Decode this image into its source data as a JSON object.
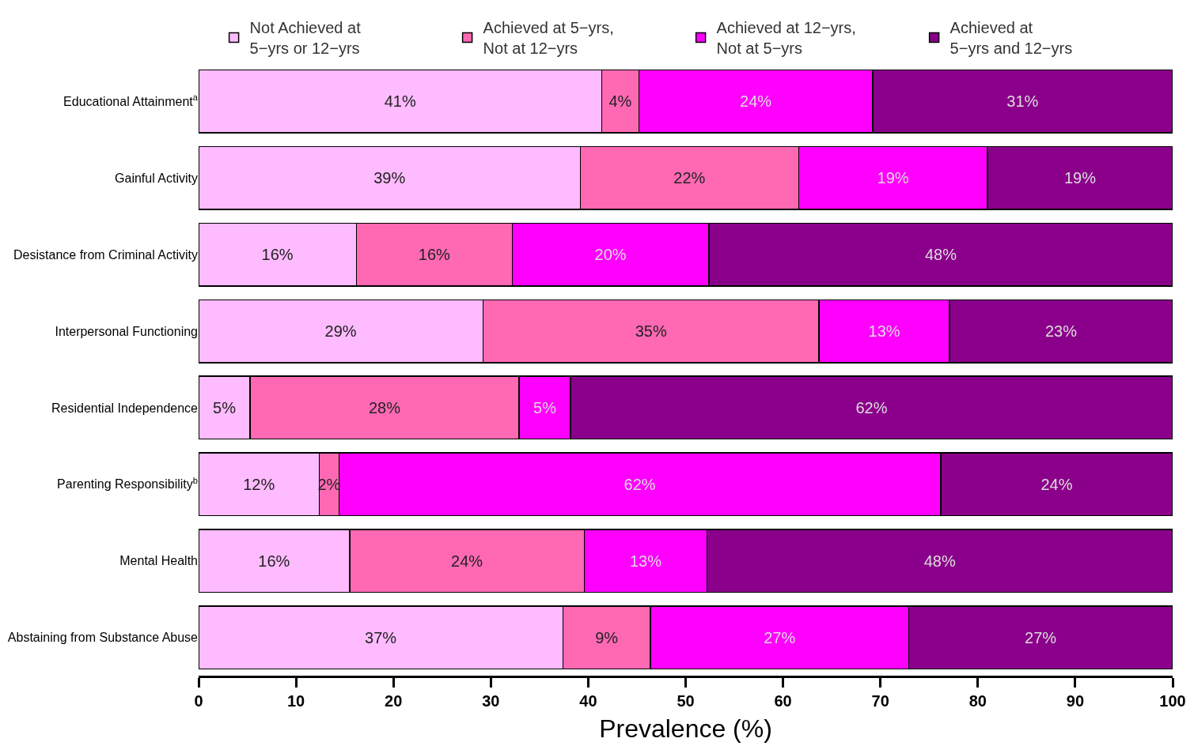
{
  "chart_data": {
    "type": "bar",
    "orientation": "horizontal",
    "stacked": true,
    "xlabel": "Prevalence (%)",
    "legend": "top",
    "categories": [
      "Educational Attainment$^{a}$",
      "Gainful Activity",
      "Desistance from Criminal Activity",
      "Interpersonal Functioning",
      "Residential Independence",
      "Parenting Responsibility$^{b}$",
      "Mental Health",
      "Abstaining from Substance Abuse"
    ],
    "series": [
      {
        "name": "Not Achieved at\n5−yrs or 12−yrs",
        "color": "#ffbbff",
        "values": [
          41.4,
          39.2,
          16.2,
          29.2,
          5.3,
          12.4,
          15.5,
          37.4
        ],
        "value_labels": [
          "41%",
          "39%",
          "16%",
          "29%",
          "5%",
          "12%",
          "16%",
          "37%"
        ]
      },
      {
        "name": "Achieved at 5−yrs,\nNot at 12−yrs",
        "color": "#ff69b4",
        "values": [
          3.8,
          22.4,
          16.0,
          34.5,
          27.6,
          2.0,
          24.1,
          9.0
        ],
        "value_labels": [
          "4%",
          "22%",
          "16%",
          "35%",
          "28%",
          "2%",
          "24%",
          "9%"
        ]
      },
      {
        "name": "Achieved at 12−yrs,\nNot at 5−yrs",
        "color": "#ff00ff",
        "values": [
          24.0,
          19.4,
          20.2,
          13.4,
          5.3,
          61.8,
          12.6,
          26.5
        ],
        "value_labels": [
          "24%",
          "19%",
          "20%",
          "13%",
          "5%",
          "62%",
          "13%",
          "27%"
        ]
      },
      {
        "name": "Achieved at\n5−yrs and 12−yrs",
        "color": "#8b008b",
        "values": [
          30.8,
          19.0,
          47.6,
          22.9,
          61.8,
          23.8,
          47.8,
          27.1
        ],
        "value_labels": [
          "31%",
          "19%",
          "48%",
          "23%",
          "62%",
          "24%",
          "48%",
          "27%"
        ]
      }
    ],
    "xlim": [
      0,
      100
    ],
    "xticks": [
      0,
      10,
      20,
      30,
      40,
      50,
      60,
      70,
      80,
      90,
      100
    ]
  }
}
